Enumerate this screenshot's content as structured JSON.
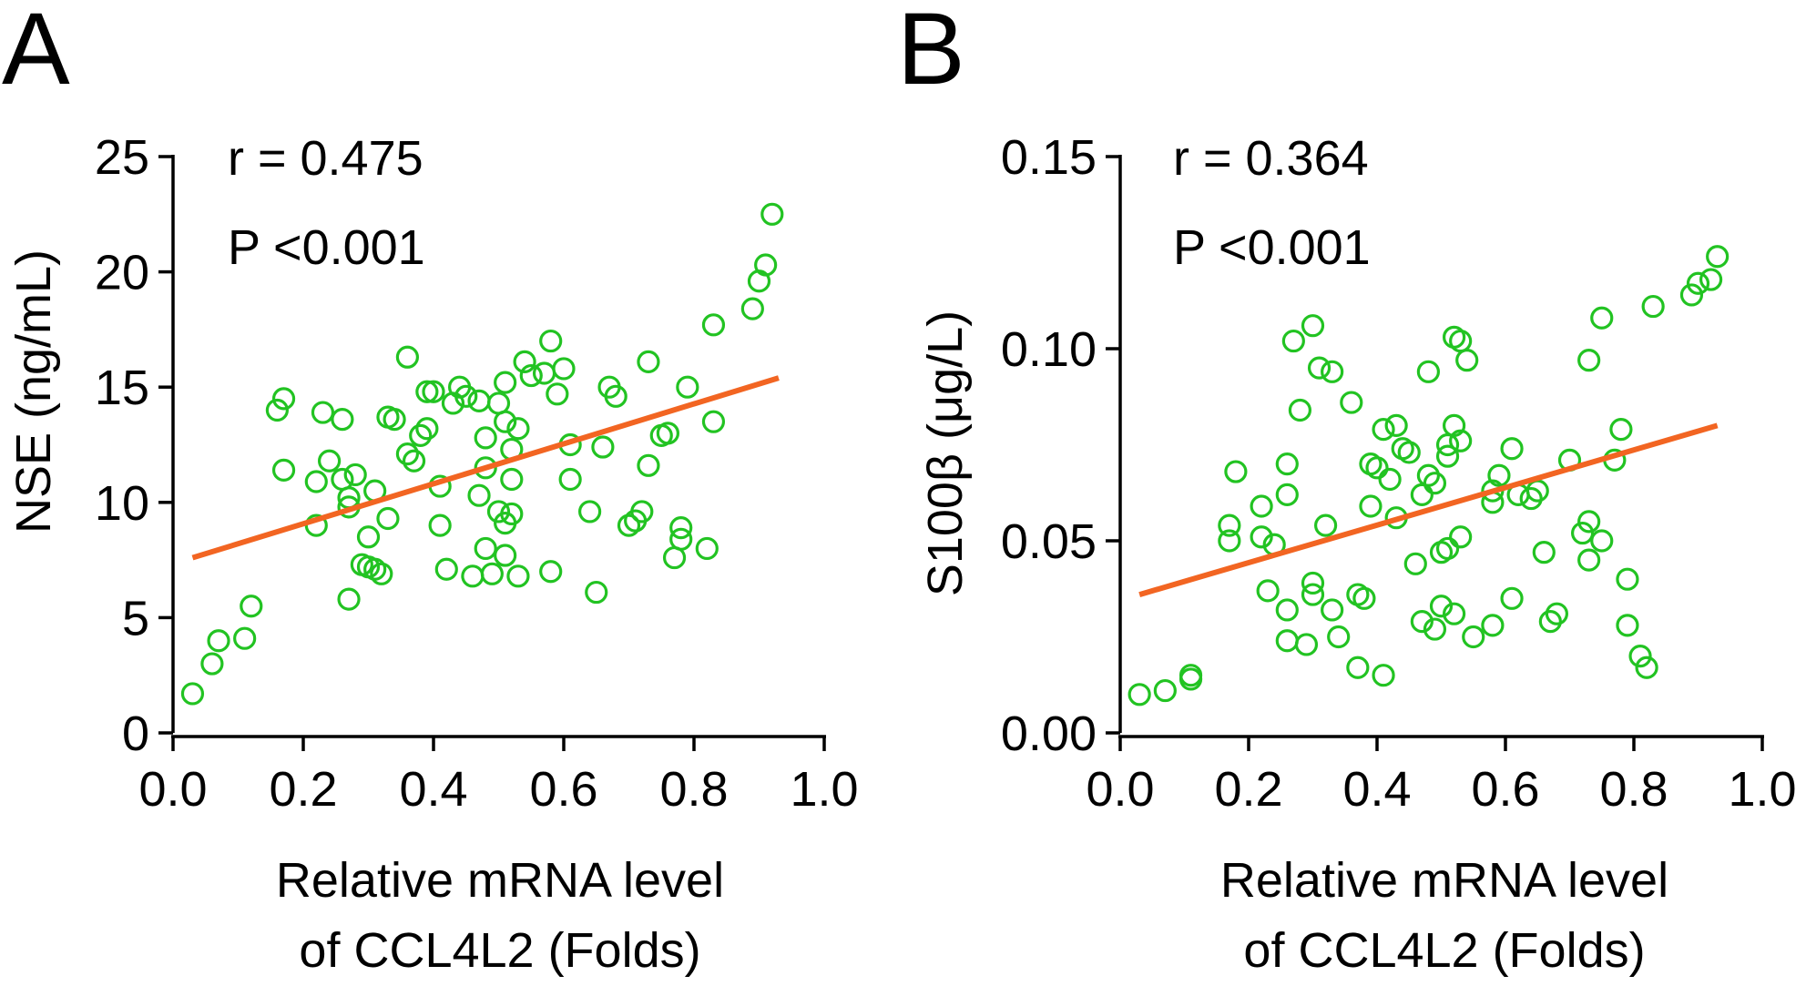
{
  "colors": {
    "points": "#22c322",
    "fit_line": "#f26522",
    "axis": "#000000"
  },
  "chart_data": [
    {
      "panel_label": "A",
      "type": "scatter",
      "title": "",
      "xlabel_lines": [
        "Relative mRNA level",
        "of CCL4L2 (Folds)"
      ],
      "ylabel": "NSE (ng/mL)",
      "xlim": [
        0,
        1.0
      ],
      "ylim": [
        0,
        25
      ],
      "xticks": [
        0.0,
        0.2,
        0.4,
        0.6,
        0.8,
        1.0
      ],
      "xtick_labels": [
        "0.0",
        "0.2",
        "0.4",
        "0.6",
        "0.8",
        "1.0"
      ],
      "yticks": [
        0,
        5,
        10,
        15,
        20,
        25
      ],
      "ytick_labels": [
        "0",
        "5",
        "10",
        "15",
        "20",
        "25"
      ],
      "stats": {
        "r": "r = 0.475",
        "p": "P <0.001"
      },
      "fit_line": {
        "x": [
          0.03,
          0.93
        ],
        "y": [
          7.6,
          15.4
        ]
      },
      "points": [
        [
          0.03,
          1.7
        ],
        [
          0.06,
          3.0
        ],
        [
          0.07,
          4.0
        ],
        [
          0.11,
          4.1
        ],
        [
          0.12,
          5.5
        ],
        [
          0.16,
          14.0
        ],
        [
          0.17,
          14.5
        ],
        [
          0.17,
          11.4
        ],
        [
          0.22,
          9.0
        ],
        [
          0.22,
          10.9
        ],
        [
          0.23,
          13.9
        ],
        [
          0.24,
          11.8
        ],
        [
          0.26,
          13.6
        ],
        [
          0.26,
          11.0
        ],
        [
          0.27,
          10.2
        ],
        [
          0.27,
          9.8
        ],
        [
          0.27,
          5.8
        ],
        [
          0.28,
          11.2
        ],
        [
          0.29,
          7.3
        ],
        [
          0.3,
          8.5
        ],
        [
          0.3,
          7.2
        ],
        [
          0.31,
          10.5
        ],
        [
          0.31,
          7.1
        ],
        [
          0.32,
          6.9
        ],
        [
          0.33,
          9.3
        ],
        [
          0.33,
          13.7
        ],
        [
          0.34,
          13.6
        ],
        [
          0.36,
          16.3
        ],
        [
          0.36,
          12.1
        ],
        [
          0.37,
          11.8
        ],
        [
          0.38,
          12.9
        ],
        [
          0.39,
          13.2
        ],
        [
          0.39,
          14.8
        ],
        [
          0.4,
          14.8
        ],
        [
          0.41,
          10.7
        ],
        [
          0.41,
          9.0
        ],
        [
          0.42,
          7.1
        ],
        [
          0.43,
          14.3
        ],
        [
          0.44,
          15.0
        ],
        [
          0.45,
          14.6
        ],
        [
          0.46,
          6.8
        ],
        [
          0.47,
          10.3
        ],
        [
          0.47,
          14.4
        ],
        [
          0.48,
          11.5
        ],
        [
          0.48,
          12.8
        ],
        [
          0.48,
          8.0
        ],
        [
          0.49,
          6.9
        ],
        [
          0.5,
          9.6
        ],
        [
          0.5,
          14.3
        ],
        [
          0.51,
          15.2
        ],
        [
          0.51,
          13.5
        ],
        [
          0.51,
          9.1
        ],
        [
          0.51,
          7.7
        ],
        [
          0.52,
          11.0
        ],
        [
          0.52,
          9.5
        ],
        [
          0.52,
          12.3
        ],
        [
          0.53,
          13.2
        ],
        [
          0.53,
          6.8
        ],
        [
          0.54,
          16.1
        ],
        [
          0.55,
          15.5
        ],
        [
          0.57,
          15.6
        ],
        [
          0.58,
          17.0
        ],
        [
          0.58,
          7.0
        ],
        [
          0.59,
          14.7
        ],
        [
          0.6,
          15.8
        ],
        [
          0.61,
          11.0
        ],
        [
          0.61,
          12.5
        ],
        [
          0.64,
          9.6
        ],
        [
          0.65,
          6.1
        ],
        [
          0.66,
          12.4
        ],
        [
          0.67,
          15.0
        ],
        [
          0.68,
          14.6
        ],
        [
          0.7,
          9.0
        ],
        [
          0.71,
          9.2
        ],
        [
          0.72,
          9.6
        ],
        [
          0.73,
          16.1
        ],
        [
          0.73,
          11.6
        ],
        [
          0.75,
          12.9
        ],
        [
          0.76,
          13.0
        ],
        [
          0.77,
          7.6
        ],
        [
          0.78,
          8.9
        ],
        [
          0.78,
          8.4
        ],
        [
          0.79,
          15.0
        ],
        [
          0.82,
          8.0
        ],
        [
          0.83,
          13.5
        ],
        [
          0.83,
          17.7
        ],
        [
          0.89,
          18.4
        ],
        [
          0.9,
          19.6
        ],
        [
          0.91,
          20.3
        ],
        [
          0.92,
          22.5
        ]
      ]
    },
    {
      "panel_label": "B",
      "type": "scatter",
      "title": "",
      "xlabel_lines": [
        "Relative mRNA level",
        "of CCL4L2 (Folds)"
      ],
      "ylabel": "S100β (μg/L)",
      "xlim": [
        0,
        1.0
      ],
      "ylim": [
        0,
        0.15
      ],
      "xticks": [
        0.0,
        0.2,
        0.4,
        0.6,
        0.8,
        1.0
      ],
      "xtick_labels": [
        "0.0",
        "0.2",
        "0.4",
        "0.6",
        "0.8",
        "1.0"
      ],
      "yticks": [
        0.0,
        0.05,
        0.1,
        0.15
      ],
      "ytick_labels": [
        "0.00",
        "0.05",
        "0.10",
        "0.15"
      ],
      "stats": {
        "r": "r = 0.364",
        "p": "P <0.001"
      },
      "fit_line": {
        "x": [
          0.03,
          0.93
        ],
        "y": [
          0.036,
          0.08
        ]
      },
      "points": [
        [
          0.03,
          0.01
        ],
        [
          0.07,
          0.011
        ],
        [
          0.11,
          0.014
        ],
        [
          0.11,
          0.015
        ],
        [
          0.17,
          0.054
        ],
        [
          0.17,
          0.05
        ],
        [
          0.18,
          0.068
        ],
        [
          0.22,
          0.059
        ],
        [
          0.22,
          0.051
        ],
        [
          0.23,
          0.037
        ],
        [
          0.24,
          0.049
        ],
        [
          0.26,
          0.07
        ],
        [
          0.26,
          0.062
        ],
        [
          0.26,
          0.032
        ],
        [
          0.26,
          0.024
        ],
        [
          0.27,
          0.102
        ],
        [
          0.28,
          0.084
        ],
        [
          0.29,
          0.023
        ],
        [
          0.3,
          0.106
        ],
        [
          0.3,
          0.039
        ],
        [
          0.3,
          0.036
        ],
        [
          0.31,
          0.095
        ],
        [
          0.32,
          0.054
        ],
        [
          0.33,
          0.094
        ],
        [
          0.33,
          0.032
        ],
        [
          0.34,
          0.025
        ],
        [
          0.36,
          0.086
        ],
        [
          0.37,
          0.036
        ],
        [
          0.37,
          0.017
        ],
        [
          0.38,
          0.035
        ],
        [
          0.39,
          0.07
        ],
        [
          0.39,
          0.059
        ],
        [
          0.4,
          0.069
        ],
        [
          0.41,
          0.079
        ],
        [
          0.41,
          0.015
        ],
        [
          0.42,
          0.066
        ],
        [
          0.43,
          0.08
        ],
        [
          0.43,
          0.056
        ],
        [
          0.44,
          0.074
        ],
        [
          0.45,
          0.073
        ],
        [
          0.46,
          0.044
        ],
        [
          0.47,
          0.029
        ],
        [
          0.47,
          0.062
        ],
        [
          0.48,
          0.067
        ],
        [
          0.48,
          0.094
        ],
        [
          0.49,
          0.065
        ],
        [
          0.49,
          0.027
        ],
        [
          0.5,
          0.033
        ],
        [
          0.5,
          0.047
        ],
        [
          0.51,
          0.048
        ],
        [
          0.51,
          0.072
        ],
        [
          0.51,
          0.075
        ],
        [
          0.52,
          0.031
        ],
        [
          0.52,
          0.08
        ],
        [
          0.52,
          0.103
        ],
        [
          0.53,
          0.076
        ],
        [
          0.53,
          0.051
        ],
        [
          0.53,
          0.102
        ],
        [
          0.54,
          0.097
        ],
        [
          0.55,
          0.025
        ],
        [
          0.58,
          0.028
        ],
        [
          0.58,
          0.063
        ],
        [
          0.58,
          0.06
        ],
        [
          0.59,
          0.067
        ],
        [
          0.61,
          0.074
        ],
        [
          0.61,
          0.035
        ],
        [
          0.62,
          0.062
        ],
        [
          0.64,
          0.061
        ],
        [
          0.65,
          0.063
        ],
        [
          0.66,
          0.047
        ],
        [
          0.67,
          0.029
        ],
        [
          0.68,
          0.031
        ],
        [
          0.7,
          0.071
        ],
        [
          0.72,
          0.052
        ],
        [
          0.73,
          0.055
        ],
        [
          0.73,
          0.045
        ],
        [
          0.73,
          0.097
        ],
        [
          0.75,
          0.05
        ],
        [
          0.75,
          0.108
        ],
        [
          0.77,
          0.071
        ],
        [
          0.78,
          0.079
        ],
        [
          0.79,
          0.04
        ],
        [
          0.79,
          0.028
        ],
        [
          0.81,
          0.02
        ],
        [
          0.82,
          0.017
        ],
        [
          0.83,
          0.111
        ],
        [
          0.89,
          0.114
        ],
        [
          0.9,
          0.117
        ],
        [
          0.92,
          0.118
        ],
        [
          0.93,
          0.124
        ]
      ]
    }
  ]
}
